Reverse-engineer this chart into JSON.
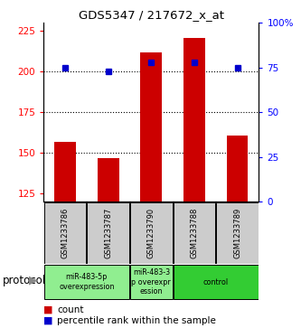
{
  "title": "GDS5347 / 217672_x_at",
  "samples": [
    "GSM1233786",
    "GSM1233787",
    "GSM1233790",
    "GSM1233788",
    "GSM1233789"
  ],
  "bar_values": [
    157,
    147,
    212,
    221,
    161
  ],
  "dot_values_pct": [
    75,
    73,
    78,
    78,
    75
  ],
  "ylim_left": [
    120,
    230
  ],
  "ylim_right": [
    0,
    100
  ],
  "yticks_left": [
    125,
    150,
    175,
    200,
    225
  ],
  "yticks_right": [
    0,
    25,
    50,
    75,
    100
  ],
  "bar_color": "#cc0000",
  "dot_color": "#0000cc",
  "bg_color": "#ffffff",
  "grp_info": [
    [
      0,
      2,
      "miR-483-5p\noverexpression",
      "#90ee90"
    ],
    [
      2,
      3,
      "miR-483-3\np overexpr\nession",
      "#90ee90"
    ],
    [
      3,
      5,
      "control",
      "#33cc33"
    ]
  ],
  "protocol_label": "protocol",
  "legend_count_label": "count",
  "legend_pct_label": "percentile rank within the sample",
  "cell_bg": "#cccccc"
}
